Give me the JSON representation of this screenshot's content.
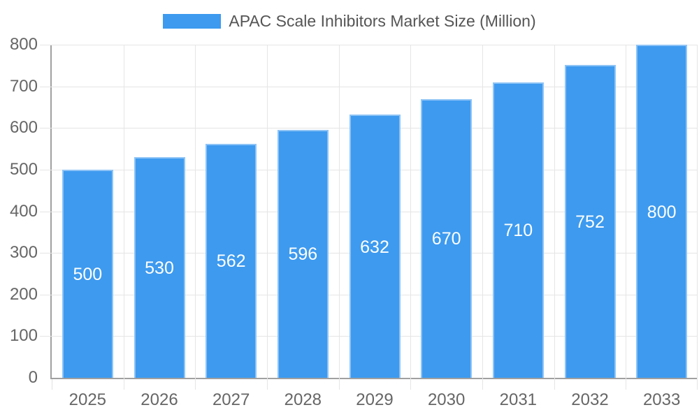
{
  "chart_data": {
    "type": "bar",
    "title": "APAC Scale Inhibitors Market Size (Million)",
    "legend": {
      "position": "top",
      "label": "APAC Scale Inhibitors Market Size (Million)"
    },
    "categories": [
      "2025",
      "2026",
      "2027",
      "2028",
      "2029",
      "2030",
      "2031",
      "2032",
      "2033"
    ],
    "values": [
      500,
      530,
      562,
      596,
      632,
      670,
      710,
      752,
      800
    ],
    "value_labels_shown": true,
    "xlabel": "",
    "ylabel": "",
    "ylim": [
      0,
      800
    ],
    "ytick_step": 100,
    "grid": "horizontal and vertical",
    "colors": {
      "bar_fill": "#3D9AEF",
      "bar_border": "rgba(255,255,255,0.42)",
      "gridline": "#e5e5e5",
      "axis_border": "#a0a0a0",
      "tick_label": "#666666",
      "legend_text": "#555555",
      "value_label": "#ffffff",
      "background": "#ffffff"
    }
  }
}
